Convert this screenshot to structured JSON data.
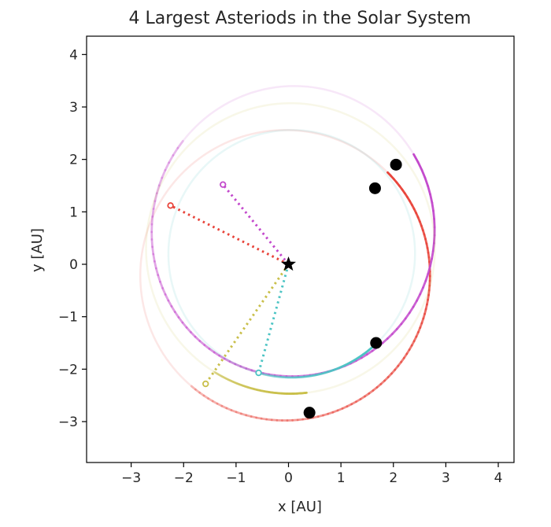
{
  "chart_data": {
    "type": "line",
    "title": "4 Largest Asteriods in the Solar System",
    "xlabel": "x [AU]",
    "ylabel": "y [AU]",
    "xlim": [
      -3.85,
      4.3
    ],
    "ylim": [
      -3.78,
      4.35
    ],
    "xticks": [
      -3,
      -2,
      -1,
      0,
      1,
      2,
      3,
      4
    ],
    "yticks": [
      -3,
      -2,
      -1,
      0,
      1,
      2,
      3,
      4
    ],
    "tick_labels": {
      "x": [
        "−3",
        "−2",
        "−1",
        "0",
        "1",
        "2",
        "3",
        "4"
      ],
      "y": [
        "−3",
        "−2",
        "−1",
        "0",
        "1",
        "2",
        "3",
        "4"
      ]
    },
    "grid": false,
    "legend": "none",
    "sun": {
      "x": 0,
      "y": 0,
      "marker": "star",
      "color": "#000000"
    },
    "series": [
      {
        "color": "#e8443a",
        "orbit": {
          "a": 2.77,
          "e": 0.079,
          "omega_deg": 73
        },
        "current": {
          "x": 2.05,
          "y": 1.9
        },
        "trail_from_deg": 42.8,
        "trail_to_deg": 231.5,
        "previous": {
          "x": -2.25,
          "y": 1.12
        }
      },
      {
        "color": "#c349cc",
        "orbit": {
          "a": 2.77,
          "e": 0.23,
          "omega_deg": 262
        },
        "current": {
          "x": 1.65,
          "y": 1.45
        },
        "trail_from_deg": 41.3,
        "trail_to_deg": 130.6,
        "previous": {
          "x": -1.25,
          "y": 1.52
        }
      },
      {
        "color": "#c9bf4a",
        "orbit": {
          "a": 2.77,
          "e": 0.11,
          "omega_deg": 263
        },
        "current": {
          "x": 0.4,
          "y": -2.83
        },
        "trail_from_deg": 278.0,
        "trail_to_deg": 235.3,
        "previous": {
          "x": -1.58,
          "y": -2.28
        }
      },
      {
        "color": "#4cc4c4",
        "orbit": {
          "a": 2.36,
          "e": 0.089,
          "omega_deg": 253
        },
        "current": {
          "x": 1.67,
          "y": -1.5
        },
        "trail_from_deg": 318.1,
        "trail_to_deg": 253.7,
        "previous": {
          "x": -0.57,
          "y": -2.07
        }
      }
    ]
  }
}
